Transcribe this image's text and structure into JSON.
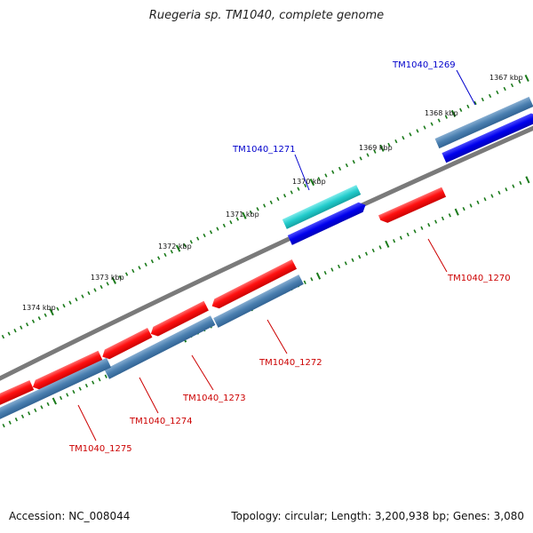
{
  "title": "Ruegeria sp. TM1040, complete genome",
  "footer": {
    "accession": "Accession: NC_008044",
    "summary": "Topology: circular; Length: 3,200,938 bp; Genes: 3,080"
  },
  "colors": {
    "backbone": "#7a7a7a",
    "tick": "#1a7a1a",
    "forward_cds": "#0000e0",
    "forward_gene": "#20c8c8",
    "reverse_cds": "#ee0000",
    "reverse_gene": "#4682b4",
    "label_forward": "#0000cc",
    "label_reverse": "#cc0000",
    "scale_label": "#111111"
  },
  "scale_labels": [
    "1367 kbp",
    "1368 kbp",
    "1369 kbp",
    "1370 kbp",
    "1371 kbp",
    "1372 kbp",
    "1373 kbp",
    "1374 kbp"
  ],
  "genes": [
    {
      "name": "TM1040_1269",
      "strand": "forward"
    },
    {
      "name": "TM1040_1270",
      "strand": "reverse"
    },
    {
      "name": "TM1040_1271",
      "strand": "forward"
    },
    {
      "name": "TM1040_1272",
      "strand": "reverse"
    },
    {
      "name": "TM1040_1273",
      "strand": "reverse"
    },
    {
      "name": "TM1040_1274",
      "strand": "reverse"
    },
    {
      "name": "TM1040_1275",
      "strand": "reverse"
    }
  ]
}
